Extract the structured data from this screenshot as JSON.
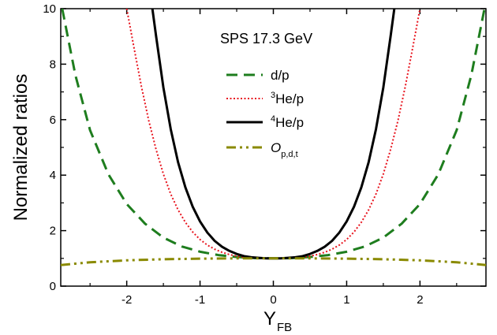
{
  "chart_data": {
    "type": "line",
    "annotation": "SPS 17.3 GeV",
    "xlabel": {
      "main": "Y",
      "sub": "FB"
    },
    "ylabel": "Normalized ratios",
    "xlim": [
      -2.9,
      2.9
    ],
    "ylim": [
      0,
      10
    ],
    "xticks_major": [
      -2,
      -1,
      0,
      1,
      2
    ],
    "xticks_minor": [
      -2.5,
      -1.5,
      -0.5,
      0.5,
      1.5,
      2.5
    ],
    "yticks_major": [
      0,
      2,
      4,
      6,
      8,
      10
    ],
    "yticks_minor": [
      1,
      3,
      5,
      7,
      9
    ],
    "grid": false,
    "legend_position": "center-right",
    "series": [
      {
        "name": "d/p",
        "legend": {
          "main": "d/p",
          "sup": "",
          "sub": "",
          "italic": false
        },
        "color": "#1e7d1e",
        "style": "dashed",
        "x": [
          -2.88,
          -2.7,
          -2.5,
          -2.25,
          -2.0,
          -1.75,
          -1.5,
          -1.25,
          -1.0,
          -0.75,
          -0.5,
          -0.25,
          0.0,
          0.25,
          0.5,
          0.75,
          1.0,
          1.25,
          1.5,
          1.75,
          2.0,
          2.25,
          2.5,
          2.7,
          2.88
        ],
        "y": [
          10.0,
          7.6,
          5.62,
          4.03,
          2.96,
          2.25,
          1.75,
          1.43,
          1.24,
          1.12,
          1.05,
          1.01,
          1.0,
          1.01,
          1.05,
          1.12,
          1.24,
          1.43,
          1.75,
          2.25,
          2.96,
          4.03,
          5.62,
          7.6,
          10.0
        ]
      },
      {
        "name": "3He/p",
        "legend": {
          "main": "He/p",
          "sup": "3",
          "sub": "",
          "italic": false
        },
        "color": "#e8141e",
        "style": "dotted",
        "x": [
          -2.0,
          -1.9,
          -1.8,
          -1.7,
          -1.6,
          -1.5,
          -1.4,
          -1.3,
          -1.2,
          -1.1,
          -1.0,
          -0.9,
          -0.8,
          -0.7,
          -0.6,
          -0.5,
          -0.4,
          -0.3,
          -0.2,
          -0.1,
          0.0,
          0.1,
          0.2,
          0.3,
          0.4,
          0.5,
          0.6,
          0.7,
          0.8,
          0.9,
          1.0,
          1.1,
          1.2,
          1.3,
          1.4,
          1.5,
          1.6,
          1.7,
          1.8,
          1.9,
          2.0
        ],
        "y": [
          10.0,
          8.58,
          7.2,
          5.97,
          4.93,
          4.04,
          3.32,
          2.75,
          2.3,
          1.95,
          1.68,
          1.48,
          1.33,
          1.22,
          1.14,
          1.08,
          1.04,
          1.02,
          1.01,
          1.0,
          1.0,
          1.0,
          1.01,
          1.02,
          1.04,
          1.08,
          1.14,
          1.22,
          1.33,
          1.48,
          1.68,
          1.95,
          2.3,
          2.75,
          3.32,
          4.04,
          4.93,
          5.97,
          7.2,
          8.58,
          10.0
        ]
      },
      {
        "name": "4He/p",
        "legend": {
          "main": "He/p",
          "sup": "4",
          "sub": "",
          "italic": false
        },
        "color": "#000000",
        "style": "solid",
        "x": [
          -1.65,
          -1.6,
          -1.5,
          -1.4,
          -1.3,
          -1.2,
          -1.1,
          -1.0,
          -0.9,
          -0.8,
          -0.7,
          -0.6,
          -0.5,
          -0.4,
          -0.3,
          -0.2,
          -0.1,
          0.0,
          0.1,
          0.2,
          0.3,
          0.4,
          0.5,
          0.6,
          0.7,
          0.8,
          0.9,
          1.0,
          1.1,
          1.2,
          1.3,
          1.4,
          1.5,
          1.6,
          1.65
        ],
        "y": [
          10.0,
          9.02,
          7.16,
          5.66,
          4.47,
          3.56,
          2.86,
          2.33,
          1.93,
          1.63,
          1.42,
          1.27,
          1.16,
          1.08,
          1.04,
          1.02,
          1.0,
          1.0,
          1.0,
          1.02,
          1.04,
          1.08,
          1.16,
          1.27,
          1.42,
          1.63,
          1.93,
          2.33,
          2.86,
          3.56,
          4.47,
          5.66,
          7.16,
          9.02,
          10.0
        ]
      },
      {
        "name": "O p,d,t",
        "legend": {
          "main": "O",
          "sup": "",
          "sub": "p,d,t",
          "italic": true
        },
        "color": "#8a8a00",
        "style": "dash-dot-dot",
        "x": [
          -2.9,
          -2.5,
          -2.0,
          -1.5,
          -1.0,
          -0.5,
          0.0,
          0.5,
          1.0,
          1.5,
          2.0,
          2.5,
          2.9
        ],
        "y": [
          0.76,
          0.86,
          0.93,
          0.97,
          0.99,
          1.0,
          1.0,
          1.0,
          0.99,
          0.97,
          0.93,
          0.86,
          0.76
        ]
      }
    ]
  }
}
